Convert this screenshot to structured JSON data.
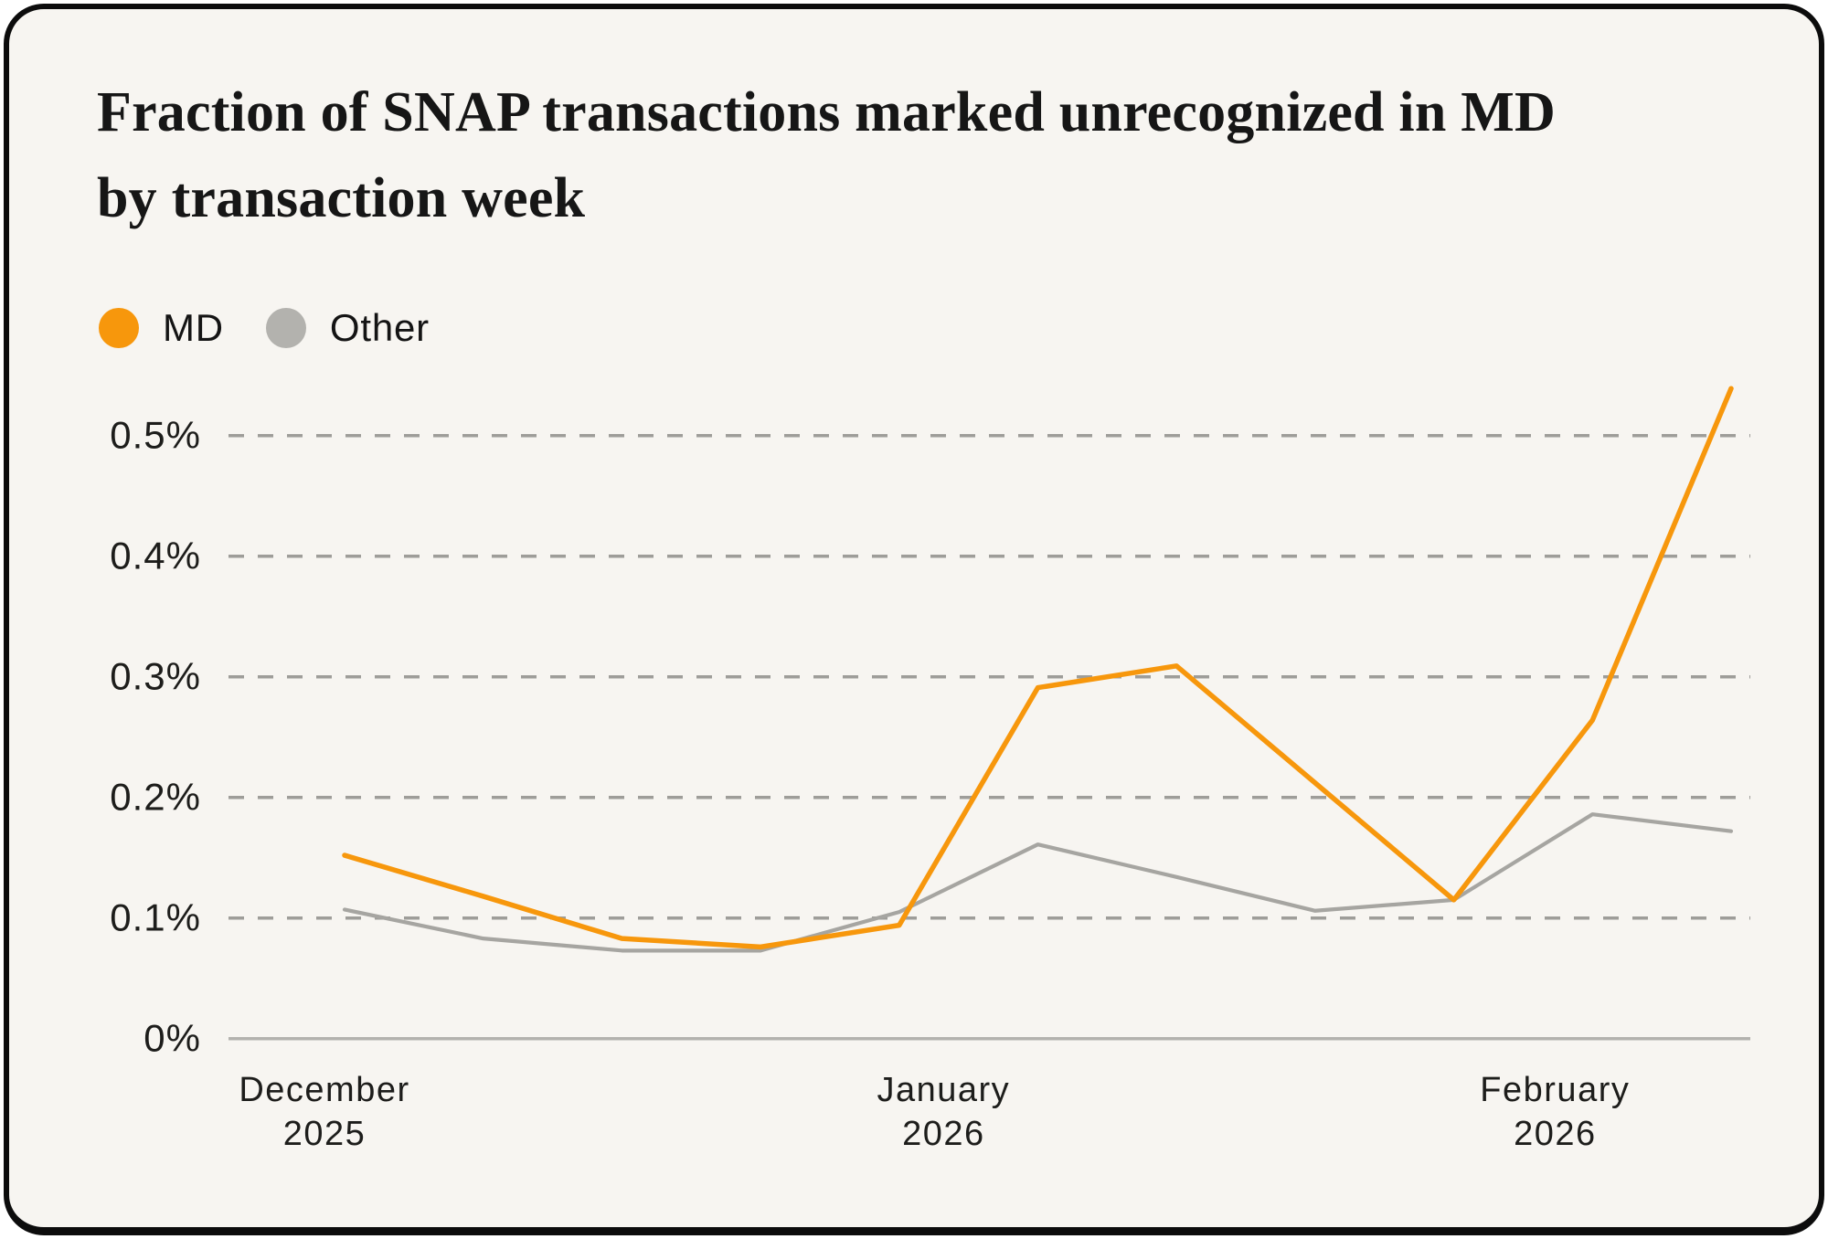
{
  "card": {
    "title_line1": "Fraction of SNAP transactions marked unrecognized in MD",
    "title_line2": "by transaction week"
  },
  "legend": [
    {
      "label": "MD",
      "color": "#F7970C"
    },
    {
      "label": "Other",
      "color": "#B3B2AE"
    }
  ],
  "chart_data": {
    "type": "line",
    "title": "Fraction of SNAP transactions marked unrecognized in MD by transaction week",
    "x_unit": "transaction week (weekly points, Dec 2025 - Feb 2026)",
    "x": [
      0,
      1,
      2,
      3,
      4,
      5,
      6,
      7,
      8,
      9,
      10
    ],
    "series": [
      {
        "name": "MD",
        "color": "#F7970C",
        "values": [
          0.152,
          0.118,
          0.083,
          0.076,
          0.094,
          0.291,
          0.309,
          0.212,
          0.115,
          0.264,
          0.539
        ]
      },
      {
        "name": "Other",
        "color": "#A6A5A1",
        "values": [
          0.107,
          0.083,
          0.073,
          0.073,
          0.105,
          0.161,
          0.134,
          0.106,
          0.115,
          0.186,
          0.172
        ]
      }
    ],
    "y_ticks": [
      {
        "label": "0%",
        "value": 0
      },
      {
        "label": "0.1%",
        "value": 0.1
      },
      {
        "label": "0.2%",
        "value": 0.2
      },
      {
        "label": "0.3%",
        "value": 0.3
      },
      {
        "label": "0.4%",
        "value": 0.4
      },
      {
        "label": "0.5%",
        "value": 0.5
      }
    ],
    "x_ticks": [
      {
        "line1": "December",
        "line2": "2025",
        "pos": -0.145
      },
      {
        "line1": "January",
        "line2": "2026",
        "pos": 4.32
      },
      {
        "line1": "February",
        "line2": "2026",
        "pos": 8.73
      }
    ],
    "ylim": [
      0,
      0.55
    ],
    "grid": "horizontal dashed",
    "legend_position": "top-left"
  }
}
